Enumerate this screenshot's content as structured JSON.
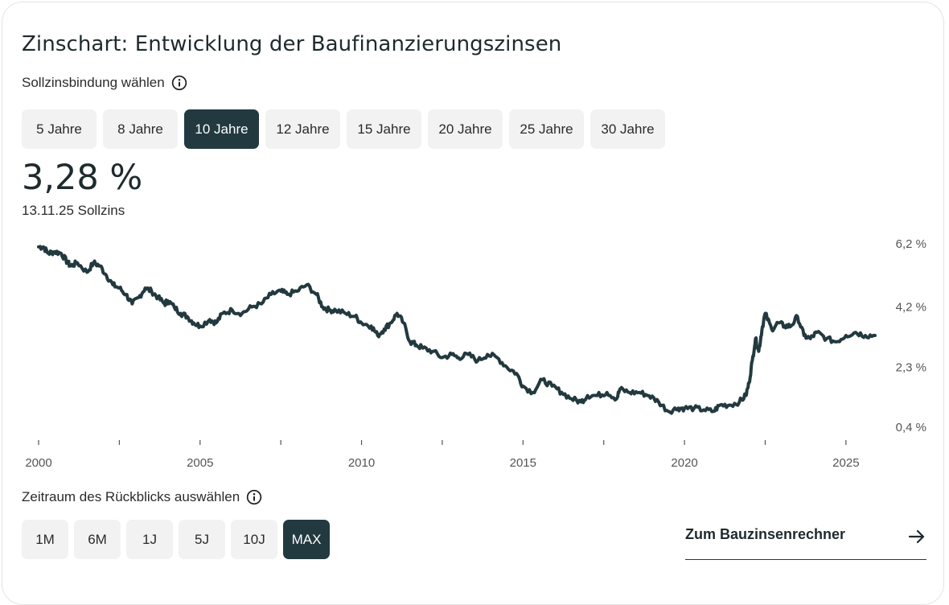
{
  "title": "Zinschart: Entwicklung der Baufinanzierungszinsen",
  "binding_label": "Sollzinsbindung wählen",
  "binding_options": [
    "5 Jahre",
    "8 Jahre",
    "10 Jahre",
    "12 Jahre",
    "15 Jahre",
    "20 Jahre",
    "25 Jahre",
    "30 Jahre"
  ],
  "binding_active": "10 Jahre",
  "current_rate": "3,28 %",
  "current_date": "13.11.25 Sollzins",
  "range_label": "Zeitraum des Rückblicks auswählen",
  "range_options": [
    "1M",
    "6M",
    "1J",
    "5J",
    "10J",
    "MAX"
  ],
  "range_active": "MAX",
  "link_label": "Zum Bauzinsenrechner",
  "icons": {
    "info": "info-icon",
    "arrow": "arrow-right-icon"
  },
  "colors": {
    "line": "#22393f",
    "active": "#22393f",
    "pill": "#f2f2f2"
  },
  "chart_data": {
    "type": "line",
    "title": "",
    "xlabel": "",
    "ylabel": "",
    "x_ticks": [
      2000,
      2005,
      2010,
      2015,
      2020,
      2025
    ],
    "y_ticks": [
      0.4,
      2.3,
      4.2,
      6.2
    ],
    "y_tick_labels": [
      "0,4 %",
      "2,3 %",
      "4,2 %",
      "6,2 %"
    ],
    "xlim": [
      2000,
      2025.9
    ],
    "ylim": [
      0.4,
      6.2
    ],
    "grid": false,
    "series": [
      {
        "x": [
          2000.0,
          2000.15,
          2000.3,
          2000.5,
          2000.7,
          2000.9,
          2001.0,
          2001.2,
          2001.5,
          2001.7,
          2001.9,
          2002.1,
          2002.3,
          2002.5,
          2002.7,
          2002.9,
          2003.1,
          2003.3,
          2003.5,
          2003.7,
          2003.9,
          2004.0,
          2004.2,
          2004.4,
          2004.6,
          2004.8,
          2005.0,
          2005.3,
          2005.5,
          2005.7,
          2006.0,
          2006.3,
          2006.6,
          2006.9,
          2007.2,
          2007.5,
          2007.7,
          2008.0,
          2008.3,
          2008.6,
          2008.8,
          2009.0,
          2009.2,
          2009.5,
          2009.8,
          2010.0,
          2010.3,
          2010.5,
          2010.7,
          2010.9,
          2011.1,
          2011.3,
          2011.5,
          2011.7,
          2011.9,
          2012.2,
          2012.5,
          2012.8,
          2013.0,
          2013.3,
          2013.6,
          2013.9,
          2014.2,
          2014.5,
          2014.8,
          2015.0,
          2015.3,
          2015.6,
          2015.9,
          2016.2,
          2016.5,
          2016.8,
          2017.0,
          2017.3,
          2017.6,
          2017.9,
          2018.0,
          2018.3,
          2018.6,
          2018.9,
          2019.2,
          2019.5,
          2019.8,
          2020.0,
          2020.3,
          2020.6,
          2020.9,
          2021.1,
          2021.4,
          2021.7,
          2021.9,
          2022.0,
          2022.1,
          2022.2,
          2022.3,
          2022.4,
          2022.5,
          2022.7,
          2022.9,
          2023.1,
          2023.3,
          2023.5,
          2023.7,
          2023.9,
          2024.1,
          2024.4,
          2024.7,
          2025.0,
          2025.3,
          2025.6,
          2025.9
        ],
        "y": [
          6.1,
          6.1,
          5.9,
          5.95,
          5.9,
          5.6,
          5.5,
          5.6,
          5.3,
          5.6,
          5.5,
          5.2,
          4.9,
          4.8,
          4.6,
          4.3,
          4.5,
          4.8,
          4.7,
          4.5,
          4.3,
          4.4,
          4.2,
          4.0,
          3.9,
          3.7,
          3.6,
          3.8,
          3.7,
          4.0,
          4.1,
          4.0,
          4.2,
          4.3,
          4.6,
          4.7,
          4.6,
          4.7,
          4.9,
          4.6,
          4.2,
          4.1,
          4.1,
          4.0,
          3.9,
          3.7,
          3.6,
          3.3,
          3.5,
          3.7,
          4.0,
          3.7,
          3.1,
          3.0,
          2.9,
          2.8,
          2.6,
          2.7,
          2.6,
          2.7,
          2.5,
          2.7,
          2.6,
          2.3,
          2.1,
          1.7,
          1.5,
          1.9,
          1.7,
          1.5,
          1.3,
          1.2,
          1.4,
          1.4,
          1.5,
          1.3,
          1.6,
          1.5,
          1.5,
          1.4,
          1.2,
          0.9,
          1.0,
          1.0,
          1.0,
          0.95,
          0.9,
          1.1,
          1.1,
          1.2,
          1.4,
          1.8,
          2.5,
          3.2,
          2.8,
          3.5,
          4.0,
          3.5,
          3.7,
          3.6,
          3.6,
          3.9,
          3.3,
          3.2,
          3.4,
          3.2,
          3.1,
          3.3,
          3.4,
          3.3,
          3.3
        ]
      }
    ]
  }
}
